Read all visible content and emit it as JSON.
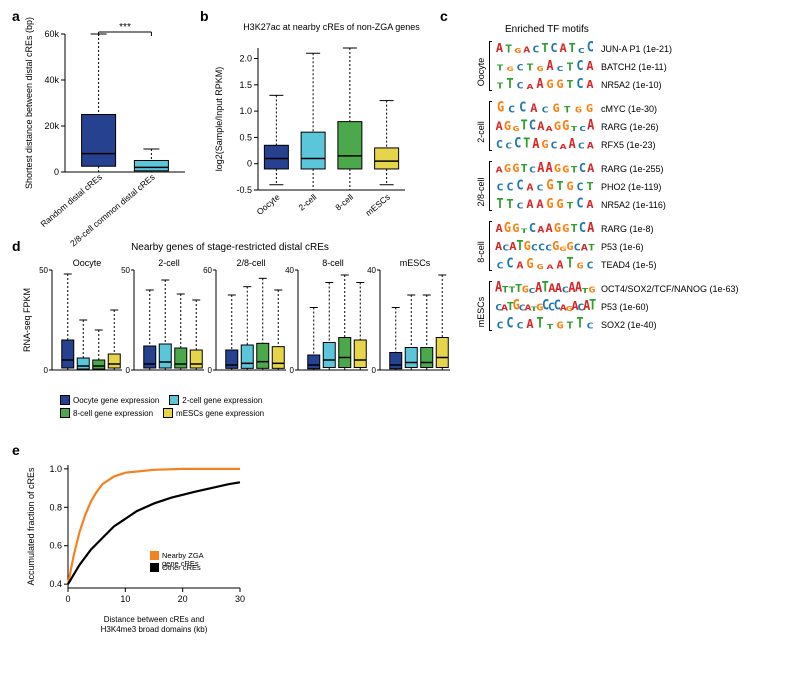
{
  "panel_a": {
    "label": "a",
    "x_labels": [
      "Random distal cREs",
      "2/8-cell common distal cREs"
    ],
    "y_label": "Shortest distance between distal cREs (bp)",
    "y_ticks": [
      "0",
      "20k",
      "40k",
      "60k"
    ],
    "y_max": 60000,
    "sig": "***",
    "boxes": [
      {
        "q1": 2500,
        "median": 8000,
        "q3": 25000,
        "whisker_low": 0,
        "whisker_high": 60000,
        "color": "#26418f"
      },
      {
        "q1": 500,
        "median": 2000,
        "q3": 5000,
        "whisker_low": 0,
        "whisker_high": 10000,
        "color": "#5bc5d9"
      }
    ]
  },
  "panel_b": {
    "label": "b",
    "title": "H3K27ac at nearby cREs of non-ZGA genes",
    "y_label": "log2(Sample/Input RPKM)",
    "x_labels": [
      "Oocyte",
      "2-cell",
      "8-cell",
      "mESCs"
    ],
    "y_ticks": [
      "-0.5",
      "0",
      "0.5",
      "1.0",
      "1.5",
      "2.0"
    ],
    "y_min": -0.5,
    "y_max": 2.2,
    "boxes": [
      {
        "q1": -0.1,
        "median": 0.1,
        "q3": 0.35,
        "whisker_low": -0.4,
        "whisker_high": 1.3,
        "color": "#26418f"
      },
      {
        "q1": -0.1,
        "median": 0.1,
        "q3": 0.6,
        "whisker_low": -0.5,
        "whisker_high": 2.1,
        "color": "#5bc5d9"
      },
      {
        "q1": -0.1,
        "median": 0.15,
        "q3": 0.8,
        "whisker_low": -0.5,
        "whisker_high": 2.2,
        "color": "#4ba94b"
      },
      {
        "q1": -0.1,
        "median": 0.05,
        "q3": 0.3,
        "whisker_low": -0.4,
        "whisker_high": 1.2,
        "color": "#e6d54a"
      }
    ]
  },
  "panel_c": {
    "label": "c",
    "title": "Enriched TF motifs",
    "base_colors": {
      "A": "#d62728",
      "C": "#1f77b4",
      "G": "#ff7f0e",
      "T": "#2ca02c"
    },
    "groups": [
      {
        "name": "Oocyte",
        "motifs": [
          {
            "seq": "ATGACTCATCC",
            "label": "JUN-A P1 (1e-21)"
          },
          {
            "seq": "TGCTGACTCA",
            "label": "BATCH2 (1e-11)"
          },
          {
            "seq": "TTCAAGGTCA",
            "label": "NR5A2 (1e-10)"
          }
        ]
      },
      {
        "name": "2-cell",
        "motifs": [
          {
            "seq": "GCCACGTGG",
            "label": "cMYC (1e-30)"
          },
          {
            "seq": "AGGTCAAGGTCA",
            "label": "RARG (1e-26)"
          },
          {
            "seq": "CCCTAGCAACA",
            "label": "RFX5 (1e-23)"
          }
        ]
      },
      {
        "name": "2/8-cell",
        "motifs": [
          {
            "seq": "AGGTCAAGGTCA",
            "label": "RARG (1e-255)"
          },
          {
            "seq": "CCCACGTGCT",
            "label": "PHO2 (1e-119)"
          },
          {
            "seq": "TTCAAGGTCA",
            "label": "NR5A2 (1e-116)"
          }
        ]
      },
      {
        "name": "8-cell",
        "motifs": [
          {
            "seq": "AGGTCAAGGTCA",
            "label": "RARG (1e-8)"
          },
          {
            "seq": "ACATGCCCGGGCAT",
            "label": "P53 (1e-6)"
          },
          {
            "seq": "CCAGGAATGC",
            "label": "TEAD4 (1e-5)"
          }
        ]
      },
      {
        "name": "mESCs",
        "motifs": [
          {
            "seq": "ATTTGCATAACAATG",
            "label": "OCT4/SOX2/TCF/NANOG (1e-63)"
          },
          {
            "seq": "CATGCATGCCCAGACAT",
            "label": "P53 (1e-60)"
          },
          {
            "seq": "CCCATTGTTC",
            "label": "SOX2 (1e-40)"
          }
        ]
      }
    ]
  },
  "panel_d": {
    "label": "d",
    "title": "Nearby genes of stage-restricted distal cREs",
    "y_label": "RNA-seq FPKM",
    "panels": [
      "Oocyte",
      "2-cell",
      "2/8-cell",
      "8-cell",
      "mESCs"
    ],
    "y_maxes": [
      50,
      50,
      60,
      40,
      40
    ],
    "legend": [
      {
        "label": "Oocyte gene expression",
        "color": "#26418f"
      },
      {
        "label": "2-cell gene expression",
        "color": "#5bc5d9"
      },
      {
        "label": "8-cell gene expression",
        "color": "#4ba94b"
      },
      {
        "label": "mESCs gene expression",
        "color": "#e6d54a"
      }
    ],
    "colors": [
      "#26418f",
      "#5bc5d9",
      "#4ba94b",
      "#e6d54a"
    ],
    "data": [
      [
        {
          "q1": 1,
          "m": 5,
          "q3": 15,
          "wl": 0,
          "wh": 48
        },
        {
          "q1": 0.5,
          "m": 2,
          "q3": 6,
          "wl": 0,
          "wh": 25
        },
        {
          "q1": 0.5,
          "m": 2,
          "q3": 5,
          "wl": 0,
          "wh": 20
        },
        {
          "q1": 1,
          "m": 3,
          "q3": 8,
          "wl": 0,
          "wh": 30
        }
      ],
      [
        {
          "q1": 1,
          "m": 3,
          "q3": 12,
          "wl": 0,
          "wh": 40
        },
        {
          "q1": 1,
          "m": 4,
          "q3": 13,
          "wl": 0,
          "wh": 45
        },
        {
          "q1": 1,
          "m": 3,
          "q3": 11,
          "wl": 0,
          "wh": 38
        },
        {
          "q1": 1,
          "m": 3,
          "q3": 10,
          "wl": 0,
          "wh": 35
        }
      ],
      [
        {
          "q1": 1,
          "m": 3,
          "q3": 12,
          "wl": 0,
          "wh": 45
        },
        {
          "q1": 1,
          "m": 4,
          "q3": 15,
          "wl": 0,
          "wh": 50
        },
        {
          "q1": 1,
          "m": 5,
          "q3": 16,
          "wl": 0,
          "wh": 55
        },
        {
          "q1": 1,
          "m": 4,
          "q3": 14,
          "wl": 0,
          "wh": 48
        }
      ],
      [
        {
          "q1": 0.5,
          "m": 2,
          "q3": 6,
          "wl": 0,
          "wh": 25
        },
        {
          "q1": 1,
          "m": 4,
          "q3": 11,
          "wl": 0,
          "wh": 35
        },
        {
          "q1": 1,
          "m": 5,
          "q3": 13,
          "wl": 0,
          "wh": 38
        },
        {
          "q1": 1,
          "m": 4,
          "q3": 12,
          "wl": 0,
          "wh": 35
        }
      ],
      [
        {
          "q1": 0.5,
          "m": 2,
          "q3": 7,
          "wl": 0,
          "wh": 25
        },
        {
          "q1": 1,
          "m": 3,
          "q3": 9,
          "wl": 0,
          "wh": 30
        },
        {
          "q1": 1,
          "m": 3,
          "q3": 9,
          "wl": 0,
          "wh": 30
        },
        {
          "q1": 1,
          "m": 5,
          "q3": 13,
          "wl": 0,
          "wh": 38
        }
      ]
    ]
  },
  "panel_e": {
    "label": "e",
    "x_label": "Distance between cREs and H3K4me3 broad domains (kb)",
    "y_label": "Accumulated fraction of cREs",
    "x_ticks": [
      "0",
      "10",
      "20",
      "30"
    ],
    "y_ticks": [
      "0.4",
      "0.6",
      "0.8",
      "1.0"
    ],
    "x_max": 30,
    "y_min": 0.38,
    "y_max": 1.02,
    "legend": [
      {
        "label": "Nearby ZGA gene cREs",
        "color": "#f58220"
      },
      {
        "label": "Other cREs",
        "color": "#000000"
      }
    ],
    "series": [
      {
        "color": "#f58220",
        "points": [
          [
            0,
            0.4
          ],
          [
            1,
            0.55
          ],
          [
            2,
            0.67
          ],
          [
            3,
            0.76
          ],
          [
            4,
            0.83
          ],
          [
            5,
            0.88
          ],
          [
            6,
            0.92
          ],
          [
            8,
            0.96
          ],
          [
            10,
            0.98
          ],
          [
            15,
            0.995
          ],
          [
            20,
            1.0
          ],
          [
            25,
            1.0
          ],
          [
            30,
            1.0
          ]
        ]
      },
      {
        "color": "#000000",
        "points": [
          [
            0,
            0.4
          ],
          [
            2,
            0.5
          ],
          [
            4,
            0.58
          ],
          [
            6,
            0.64
          ],
          [
            8,
            0.7
          ],
          [
            10,
            0.74
          ],
          [
            12,
            0.78
          ],
          [
            15,
            0.82
          ],
          [
            18,
            0.85
          ],
          [
            22,
            0.88
          ],
          [
            25,
            0.9
          ],
          [
            28,
            0.92
          ],
          [
            30,
            0.93
          ]
        ]
      }
    ]
  }
}
